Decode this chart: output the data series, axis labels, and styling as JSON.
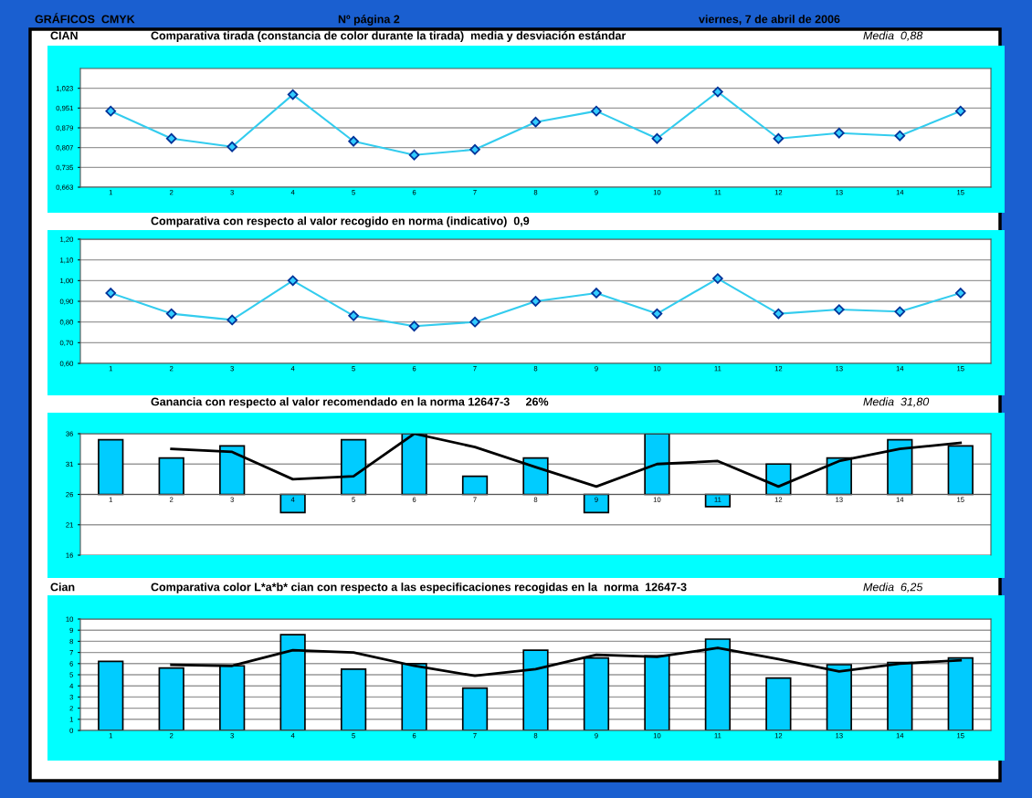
{
  "chart_data": [
    {
      "type": "line",
      "title": "Comparativa tirada (constancia de color durante la tirada)  media y desviación estándar",
      "annotations": [
        "GRÁFICOS  CMYK",
        "Nº página 2",
        "viernes, 7 de abril de 2006",
        "CIAN",
        "Media  0,88"
      ],
      "categories": [
        "1",
        "2",
        "3",
        "4",
        "5",
        "6",
        "7",
        "8",
        "9",
        "10",
        "11",
        "12",
        "13",
        "14",
        "15"
      ],
      "series": [
        {
          "color": "#33ccee",
          "values": [
            0.94,
            0.84,
            0.81,
            1.0,
            0.83,
            0.78,
            0.8,
            0.9,
            0.94,
            0.84,
            1.01,
            0.84,
            0.86,
            0.85,
            0.94
          ]
        }
      ],
      "ylim": [
        0.663,
        1.095
      ],
      "yticks": [
        {
          "value": 0.663,
          "label": "0,663"
        },
        {
          "value": 0.735,
          "label": "0,735"
        },
        {
          "value": 0.807,
          "label": "0,807"
        },
        {
          "value": 0.879,
          "label": "0,879"
        },
        {
          "value": 0.951,
          "label": "0,951"
        },
        {
          "value": 1.023,
          "label": "1,023"
        }
      ],
      "grid": "y",
      "marker": "diamond"
    },
    {
      "type": "line",
      "title": "Comparativa con respecto al valor recogido en norma (indicativo)  0,9",
      "categories": [
        "1",
        "2",
        "3",
        "4",
        "5",
        "6",
        "7",
        "8",
        "9",
        "10",
        "11",
        "12",
        "13",
        "14",
        "15"
      ],
      "series": [
        {
          "color": "#33ccee",
          "values": [
            0.94,
            0.84,
            0.81,
            1.0,
            0.83,
            0.78,
            0.8,
            0.9,
            0.94,
            0.84,
            1.01,
            0.84,
            0.86,
            0.85,
            0.94
          ]
        }
      ],
      "ylim": [
        0.6,
        1.2
      ],
      "yticks": [
        {
          "value": 0.6,
          "label": "0,60"
        },
        {
          "value": 0.7,
          "label": "0,70"
        },
        {
          "value": 0.8,
          "label": "0,80"
        },
        {
          "value": 0.9,
          "label": "0,90"
        },
        {
          "value": 1.0,
          "label": "1,00"
        },
        {
          "value": 1.1,
          "label": "1,10"
        },
        {
          "value": 1.2,
          "label": "1,20"
        }
      ],
      "grid": "y",
      "marker": "diamond"
    },
    {
      "type": "bar",
      "title": "Ganancia con respecto al valor recomendado en la norma 12647-3     26%",
      "annotations": [
        "Media  31,80"
      ],
      "categories": [
        "1",
        "2",
        "3",
        "4",
        "5",
        "6",
        "7",
        "8",
        "9",
        "10",
        "11",
        "12",
        "13",
        "14",
        "15"
      ],
      "series": [
        {
          "type": "bar",
          "color": "#00ccff",
          "base": [
            26,
            26,
            26,
            26,
            26,
            26,
            26,
            26,
            26,
            26,
            26,
            26,
            26,
            26,
            26
          ],
          "values": [
            9,
            6,
            8,
            -3,
            9,
            10,
            3,
            6,
            -3,
            10,
            -2,
            5,
            6,
            9,
            8
          ]
        },
        {
          "type": "line",
          "color": "#000000",
          "values": [
            null,
            33.5,
            33,
            28.5,
            29,
            36,
            33.8,
            30.5,
            27.3,
            31,
            31.5,
            27.3,
            31.5,
            33.5,
            34.5
          ]
        }
      ],
      "ylim": [
        16,
        36
      ],
      "yticks": [
        16,
        21,
        26,
        31,
        36
      ],
      "grid": "y"
    },
    {
      "type": "bar",
      "title": "Comparativa color L*a*b* cian con respecto a las especificaciones recogidas en la  norma  12647-3",
      "annotations": [
        "Cian",
        "Media  6,25"
      ],
      "categories": [
        "1",
        "2",
        "3",
        "4",
        "5",
        "6",
        "7",
        "8",
        "9",
        "10",
        "11",
        "12",
        "13",
        "14",
        "15"
      ],
      "series": [
        {
          "type": "bar",
          "color": "#00ccff",
          "values": [
            6.2,
            5.6,
            5.8,
            8.6,
            5.5,
            6.0,
            3.8,
            7.2,
            6.5,
            6.7,
            8.2,
            4.7,
            5.9,
            6.1,
            6.5
          ]
        },
        {
          "type": "line",
          "color": "#000000",
          "values": [
            null,
            5.9,
            5.8,
            7.2,
            7.0,
            5.8,
            4.9,
            5.5,
            6.8,
            6.6,
            7.4,
            6.4,
            5.3,
            6.0,
            6.3
          ]
        }
      ],
      "ylim": [
        0,
        10
      ],
      "yticks": [
        0,
        1,
        2,
        3,
        4,
        5,
        6,
        7,
        8,
        9,
        10
      ],
      "grid": "y"
    }
  ]
}
